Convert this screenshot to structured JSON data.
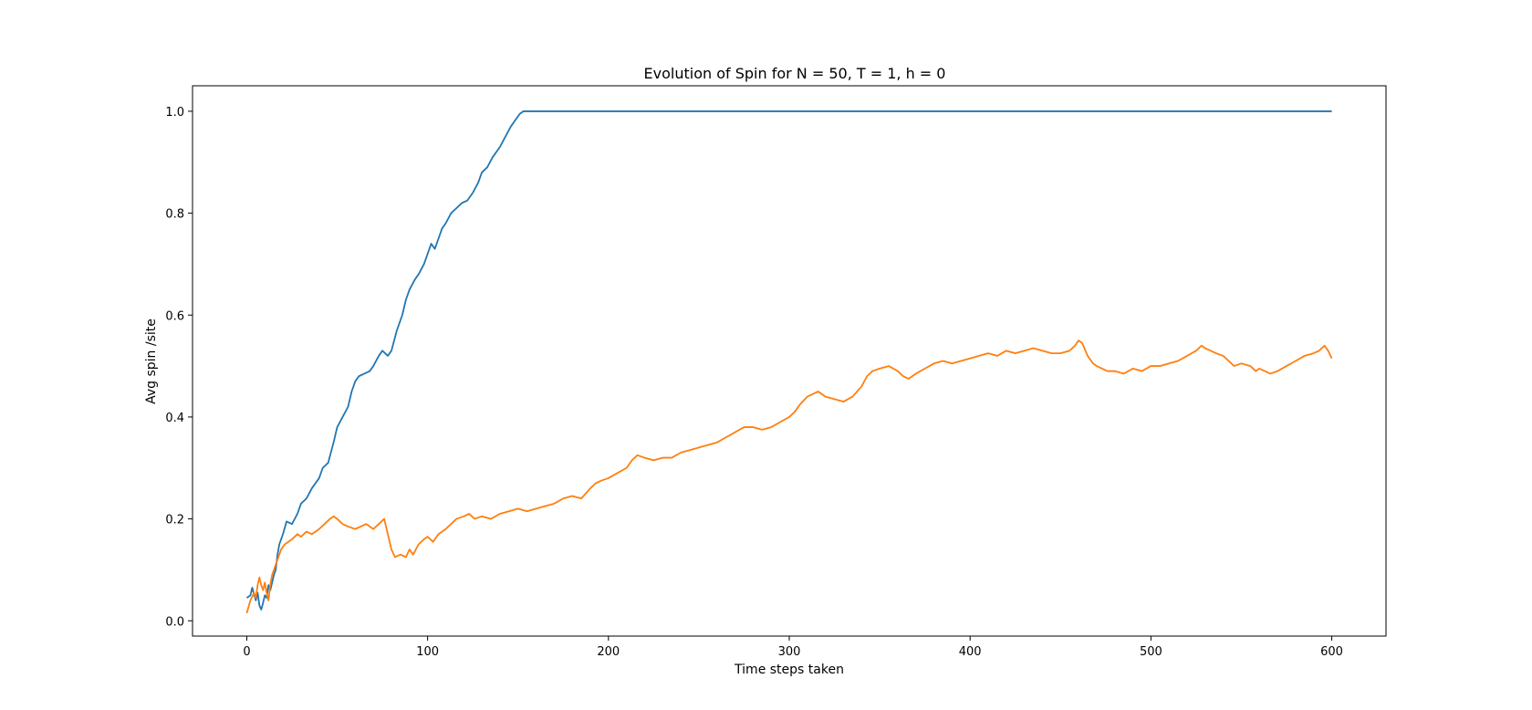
{
  "chart_data": {
    "type": "line",
    "title": "Evolution of Spin for N = 50, T = 1, h = 0",
    "xlabel": "Time steps taken",
    "ylabel": "Avg spin /site",
    "xlim": [
      -30,
      630
    ],
    "ylim": [
      -0.03,
      1.05
    ],
    "xticks": [
      0,
      100,
      200,
      300,
      400,
      500,
      600
    ],
    "yticks": [
      0.0,
      0.2,
      0.4,
      0.6,
      0.8,
      1.0
    ],
    "xtick_labels": [
      "0",
      "100",
      "200",
      "300",
      "400",
      "500",
      "600"
    ],
    "ytick_labels": [
      "0.0",
      "0.2",
      "0.4",
      "0.6",
      "0.8",
      "1.0"
    ],
    "grid": false,
    "series": [
      {
        "color": "#1f77b4",
        "points": [
          [
            0,
            0.045
          ],
          [
            2,
            0.05
          ],
          [
            3,
            0.065
          ],
          [
            5,
            0.04
          ],
          [
            6,
            0.055
          ],
          [
            7,
            0.03
          ],
          [
            8,
            0.022
          ],
          [
            9,
            0.035
          ],
          [
            10,
            0.05
          ],
          [
            11,
            0.045
          ],
          [
            12,
            0.07
          ],
          [
            13,
            0.06
          ],
          [
            14,
            0.075
          ],
          [
            15,
            0.09
          ],
          [
            16,
            0.1
          ],
          [
            17,
            0.13
          ],
          [
            18,
            0.15
          ],
          [
            20,
            0.17
          ],
          [
            22,
            0.195
          ],
          [
            25,
            0.19
          ],
          [
            28,
            0.21
          ],
          [
            30,
            0.23
          ],
          [
            33,
            0.24
          ],
          [
            36,
            0.26
          ],
          [
            40,
            0.28
          ],
          [
            42,
            0.3
          ],
          [
            45,
            0.31
          ],
          [
            48,
            0.35
          ],
          [
            50,
            0.38
          ],
          [
            53,
            0.4
          ],
          [
            56,
            0.42
          ],
          [
            58,
            0.45
          ],
          [
            60,
            0.47
          ],
          [
            62,
            0.48
          ],
          [
            65,
            0.485
          ],
          [
            68,
            0.49
          ],
          [
            70,
            0.5
          ],
          [
            73,
            0.52
          ],
          [
            75,
            0.53
          ],
          [
            78,
            0.52
          ],
          [
            80,
            0.53
          ],
          [
            83,
            0.57
          ],
          [
            86,
            0.6
          ],
          [
            88,
            0.63
          ],
          [
            90,
            0.65
          ],
          [
            93,
            0.67
          ],
          [
            95,
            0.68
          ],
          [
            98,
            0.7
          ],
          [
            100,
            0.72
          ],
          [
            102,
            0.74
          ],
          [
            104,
            0.73
          ],
          [
            106,
            0.75
          ],
          [
            108,
            0.77
          ],
          [
            110,
            0.78
          ],
          [
            113,
            0.8
          ],
          [
            116,
            0.81
          ],
          [
            119,
            0.82
          ],
          [
            122,
            0.825
          ],
          [
            125,
            0.84
          ],
          [
            128,
            0.86
          ],
          [
            130,
            0.88
          ],
          [
            133,
            0.89
          ],
          [
            136,
            0.91
          ],
          [
            140,
            0.93
          ],
          [
            143,
            0.95
          ],
          [
            146,
            0.97
          ],
          [
            149,
            0.985
          ],
          [
            151,
            0.995
          ],
          [
            153,
            1.0
          ],
          [
            160,
            1.0
          ],
          [
            200,
            1.0
          ],
          [
            300,
            1.0
          ],
          [
            400,
            1.0
          ],
          [
            500,
            1.0
          ],
          [
            600,
            1.0
          ]
        ]
      },
      {
        "color": "#ff7f0e",
        "points": [
          [
            0,
            0.015
          ],
          [
            2,
            0.04
          ],
          [
            4,
            0.055
          ],
          [
            5,
            0.045
          ],
          [
            6,
            0.07
          ],
          [
            7,
            0.085
          ],
          [
            8,
            0.07
          ],
          [
            9,
            0.06
          ],
          [
            10,
            0.075
          ],
          [
            11,
            0.055
          ],
          [
            12,
            0.04
          ],
          [
            13,
            0.07
          ],
          [
            14,
            0.09
          ],
          [
            15,
            0.1
          ],
          [
            17,
            0.12
          ],
          [
            19,
            0.14
          ],
          [
            21,
            0.15
          ],
          [
            23,
            0.155
          ],
          [
            25,
            0.16
          ],
          [
            28,
            0.17
          ],
          [
            30,
            0.165
          ],
          [
            33,
            0.175
          ],
          [
            36,
            0.17
          ],
          [
            40,
            0.18
          ],
          [
            43,
            0.19
          ],
          [
            46,
            0.2
          ],
          [
            48,
            0.205
          ],
          [
            50,
            0.2
          ],
          [
            53,
            0.19
          ],
          [
            56,
            0.185
          ],
          [
            60,
            0.18
          ],
          [
            63,
            0.185
          ],
          [
            66,
            0.19
          ],
          [
            70,
            0.18
          ],
          [
            73,
            0.19
          ],
          [
            76,
            0.2
          ],
          [
            78,
            0.17
          ],
          [
            80,
            0.14
          ],
          [
            82,
            0.125
          ],
          [
            85,
            0.13
          ],
          [
            88,
            0.125
          ],
          [
            90,
            0.14
          ],
          [
            92,
            0.13
          ],
          [
            95,
            0.15
          ],
          [
            98,
            0.16
          ],
          [
            100,
            0.165
          ],
          [
            103,
            0.155
          ],
          [
            106,
            0.17
          ],
          [
            110,
            0.18
          ],
          [
            113,
            0.19
          ],
          [
            116,
            0.2
          ],
          [
            120,
            0.205
          ],
          [
            123,
            0.21
          ],
          [
            126,
            0.2
          ],
          [
            130,
            0.205
          ],
          [
            135,
            0.2
          ],
          [
            140,
            0.21
          ],
          [
            145,
            0.215
          ],
          [
            150,
            0.22
          ],
          [
            155,
            0.215
          ],
          [
            160,
            0.22
          ],
          [
            165,
            0.225
          ],
          [
            170,
            0.23
          ],
          [
            175,
            0.24
          ],
          [
            180,
            0.245
          ],
          [
            185,
            0.24
          ],
          [
            190,
            0.26
          ],
          [
            193,
            0.27
          ],
          [
            196,
            0.275
          ],
          [
            200,
            0.28
          ],
          [
            205,
            0.29
          ],
          [
            210,
            0.3
          ],
          [
            213,
            0.315
          ],
          [
            216,
            0.325
          ],
          [
            220,
            0.32
          ],
          [
            225,
            0.315
          ],
          [
            230,
            0.32
          ],
          [
            235,
            0.32
          ],
          [
            240,
            0.33
          ],
          [
            245,
            0.335
          ],
          [
            250,
            0.34
          ],
          [
            255,
            0.345
          ],
          [
            260,
            0.35
          ],
          [
            265,
            0.36
          ],
          [
            270,
            0.37
          ],
          [
            275,
            0.38
          ],
          [
            280,
            0.38
          ],
          [
            285,
            0.375
          ],
          [
            290,
            0.38
          ],
          [
            295,
            0.39
          ],
          [
            300,
            0.4
          ],
          [
            303,
            0.41
          ],
          [
            306,
            0.425
          ],
          [
            310,
            0.44
          ],
          [
            313,
            0.445
          ],
          [
            316,
            0.45
          ],
          [
            320,
            0.44
          ],
          [
            325,
            0.435
          ],
          [
            330,
            0.43
          ],
          [
            335,
            0.44
          ],
          [
            340,
            0.46
          ],
          [
            343,
            0.48
          ],
          [
            346,
            0.49
          ],
          [
            350,
            0.495
          ],
          [
            355,
            0.5
          ],
          [
            360,
            0.49
          ],
          [
            363,
            0.48
          ],
          [
            366,
            0.475
          ],
          [
            370,
            0.485
          ],
          [
            375,
            0.495
          ],
          [
            380,
            0.505
          ],
          [
            385,
            0.51
          ],
          [
            390,
            0.505
          ],
          [
            395,
            0.51
          ],
          [
            400,
            0.515
          ],
          [
            405,
            0.52
          ],
          [
            410,
            0.525
          ],
          [
            415,
            0.52
          ],
          [
            420,
            0.53
          ],
          [
            425,
            0.525
          ],
          [
            430,
            0.53
          ],
          [
            435,
            0.535
          ],
          [
            440,
            0.53
          ],
          [
            445,
            0.525
          ],
          [
            450,
            0.525
          ],
          [
            455,
            0.53
          ],
          [
            458,
            0.54
          ],
          [
            460,
            0.55
          ],
          [
            462,
            0.545
          ],
          [
            465,
            0.52
          ],
          [
            468,
            0.505
          ],
          [
            470,
            0.5
          ],
          [
            473,
            0.495
          ],
          [
            476,
            0.49
          ],
          [
            480,
            0.49
          ],
          [
            485,
            0.485
          ],
          [
            490,
            0.495
          ],
          [
            495,
            0.49
          ],
          [
            500,
            0.5
          ],
          [
            505,
            0.5
          ],
          [
            510,
            0.505
          ],
          [
            515,
            0.51
          ],
          [
            520,
            0.52
          ],
          [
            525,
            0.53
          ],
          [
            528,
            0.54
          ],
          [
            530,
            0.535
          ],
          [
            533,
            0.53
          ],
          [
            536,
            0.525
          ],
          [
            540,
            0.52
          ],
          [
            543,
            0.51
          ],
          [
            546,
            0.5
          ],
          [
            550,
            0.505
          ],
          [
            555,
            0.5
          ],
          [
            558,
            0.49
          ],
          [
            560,
            0.495
          ],
          [
            563,
            0.49
          ],
          [
            566,
            0.485
          ],
          [
            570,
            0.49
          ],
          [
            575,
            0.5
          ],
          [
            580,
            0.51
          ],
          [
            585,
            0.52
          ],
          [
            590,
            0.525
          ],
          [
            593,
            0.53
          ],
          [
            596,
            0.54
          ],
          [
            598,
            0.53
          ],
          [
            600,
            0.515
          ]
        ]
      }
    ]
  }
}
